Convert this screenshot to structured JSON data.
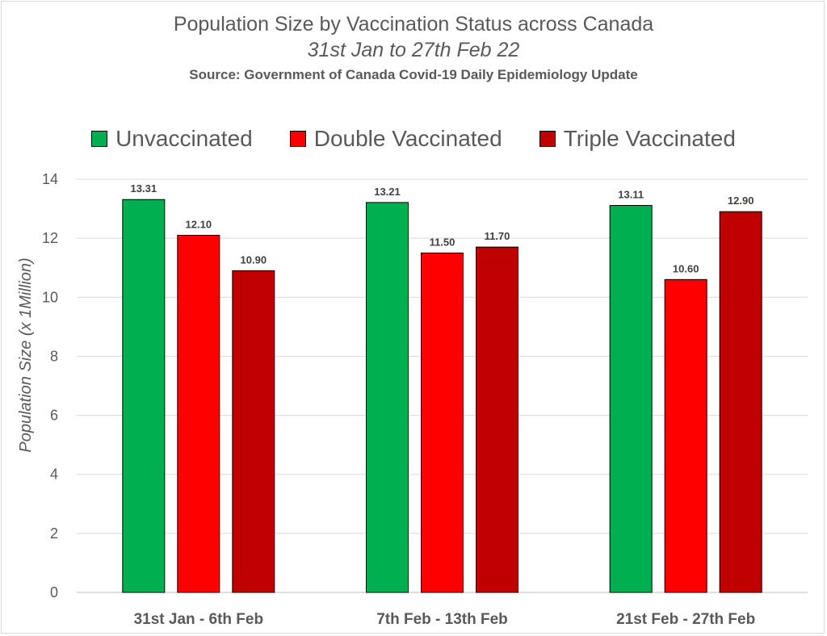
{
  "chart_data": {
    "type": "bar",
    "title": "Population Size by Vaccination Status across Canada",
    "subtitle": "31st Jan to 27th Feb 22",
    "source": "Source: Government of Canada  Covid-19 Daily Epidemiology Update",
    "ylabel": "Population Size (x 1Million)",
    "xlabel": "",
    "ylim": [
      0,
      14
    ],
    "yticks": [
      0,
      2,
      4,
      6,
      8,
      10,
      12,
      14
    ],
    "grid": true,
    "legend_position": "top",
    "categories": [
      "31st Jan - 6th Feb",
      "7th Feb - 13th Feb",
      "21st Feb - 27th Feb"
    ],
    "series": [
      {
        "name": "Unvaccinated",
        "color": "#00b050",
        "values": [
          13.31,
          13.21,
          13.11
        ],
        "labels": [
          "13.31",
          "13.21",
          "13.11"
        ]
      },
      {
        "name": "Double Vaccinated",
        "color": "#ff0000",
        "values": [
          12.1,
          11.5,
          10.6
        ],
        "labels": [
          "12.10",
          "11.50",
          "10.60"
        ]
      },
      {
        "name": "Triple Vaccinated",
        "color": "#c00000",
        "values": [
          10.9,
          11.7,
          12.9
        ],
        "labels": [
          "10.90",
          "11.70",
          "12.90"
        ]
      }
    ]
  }
}
